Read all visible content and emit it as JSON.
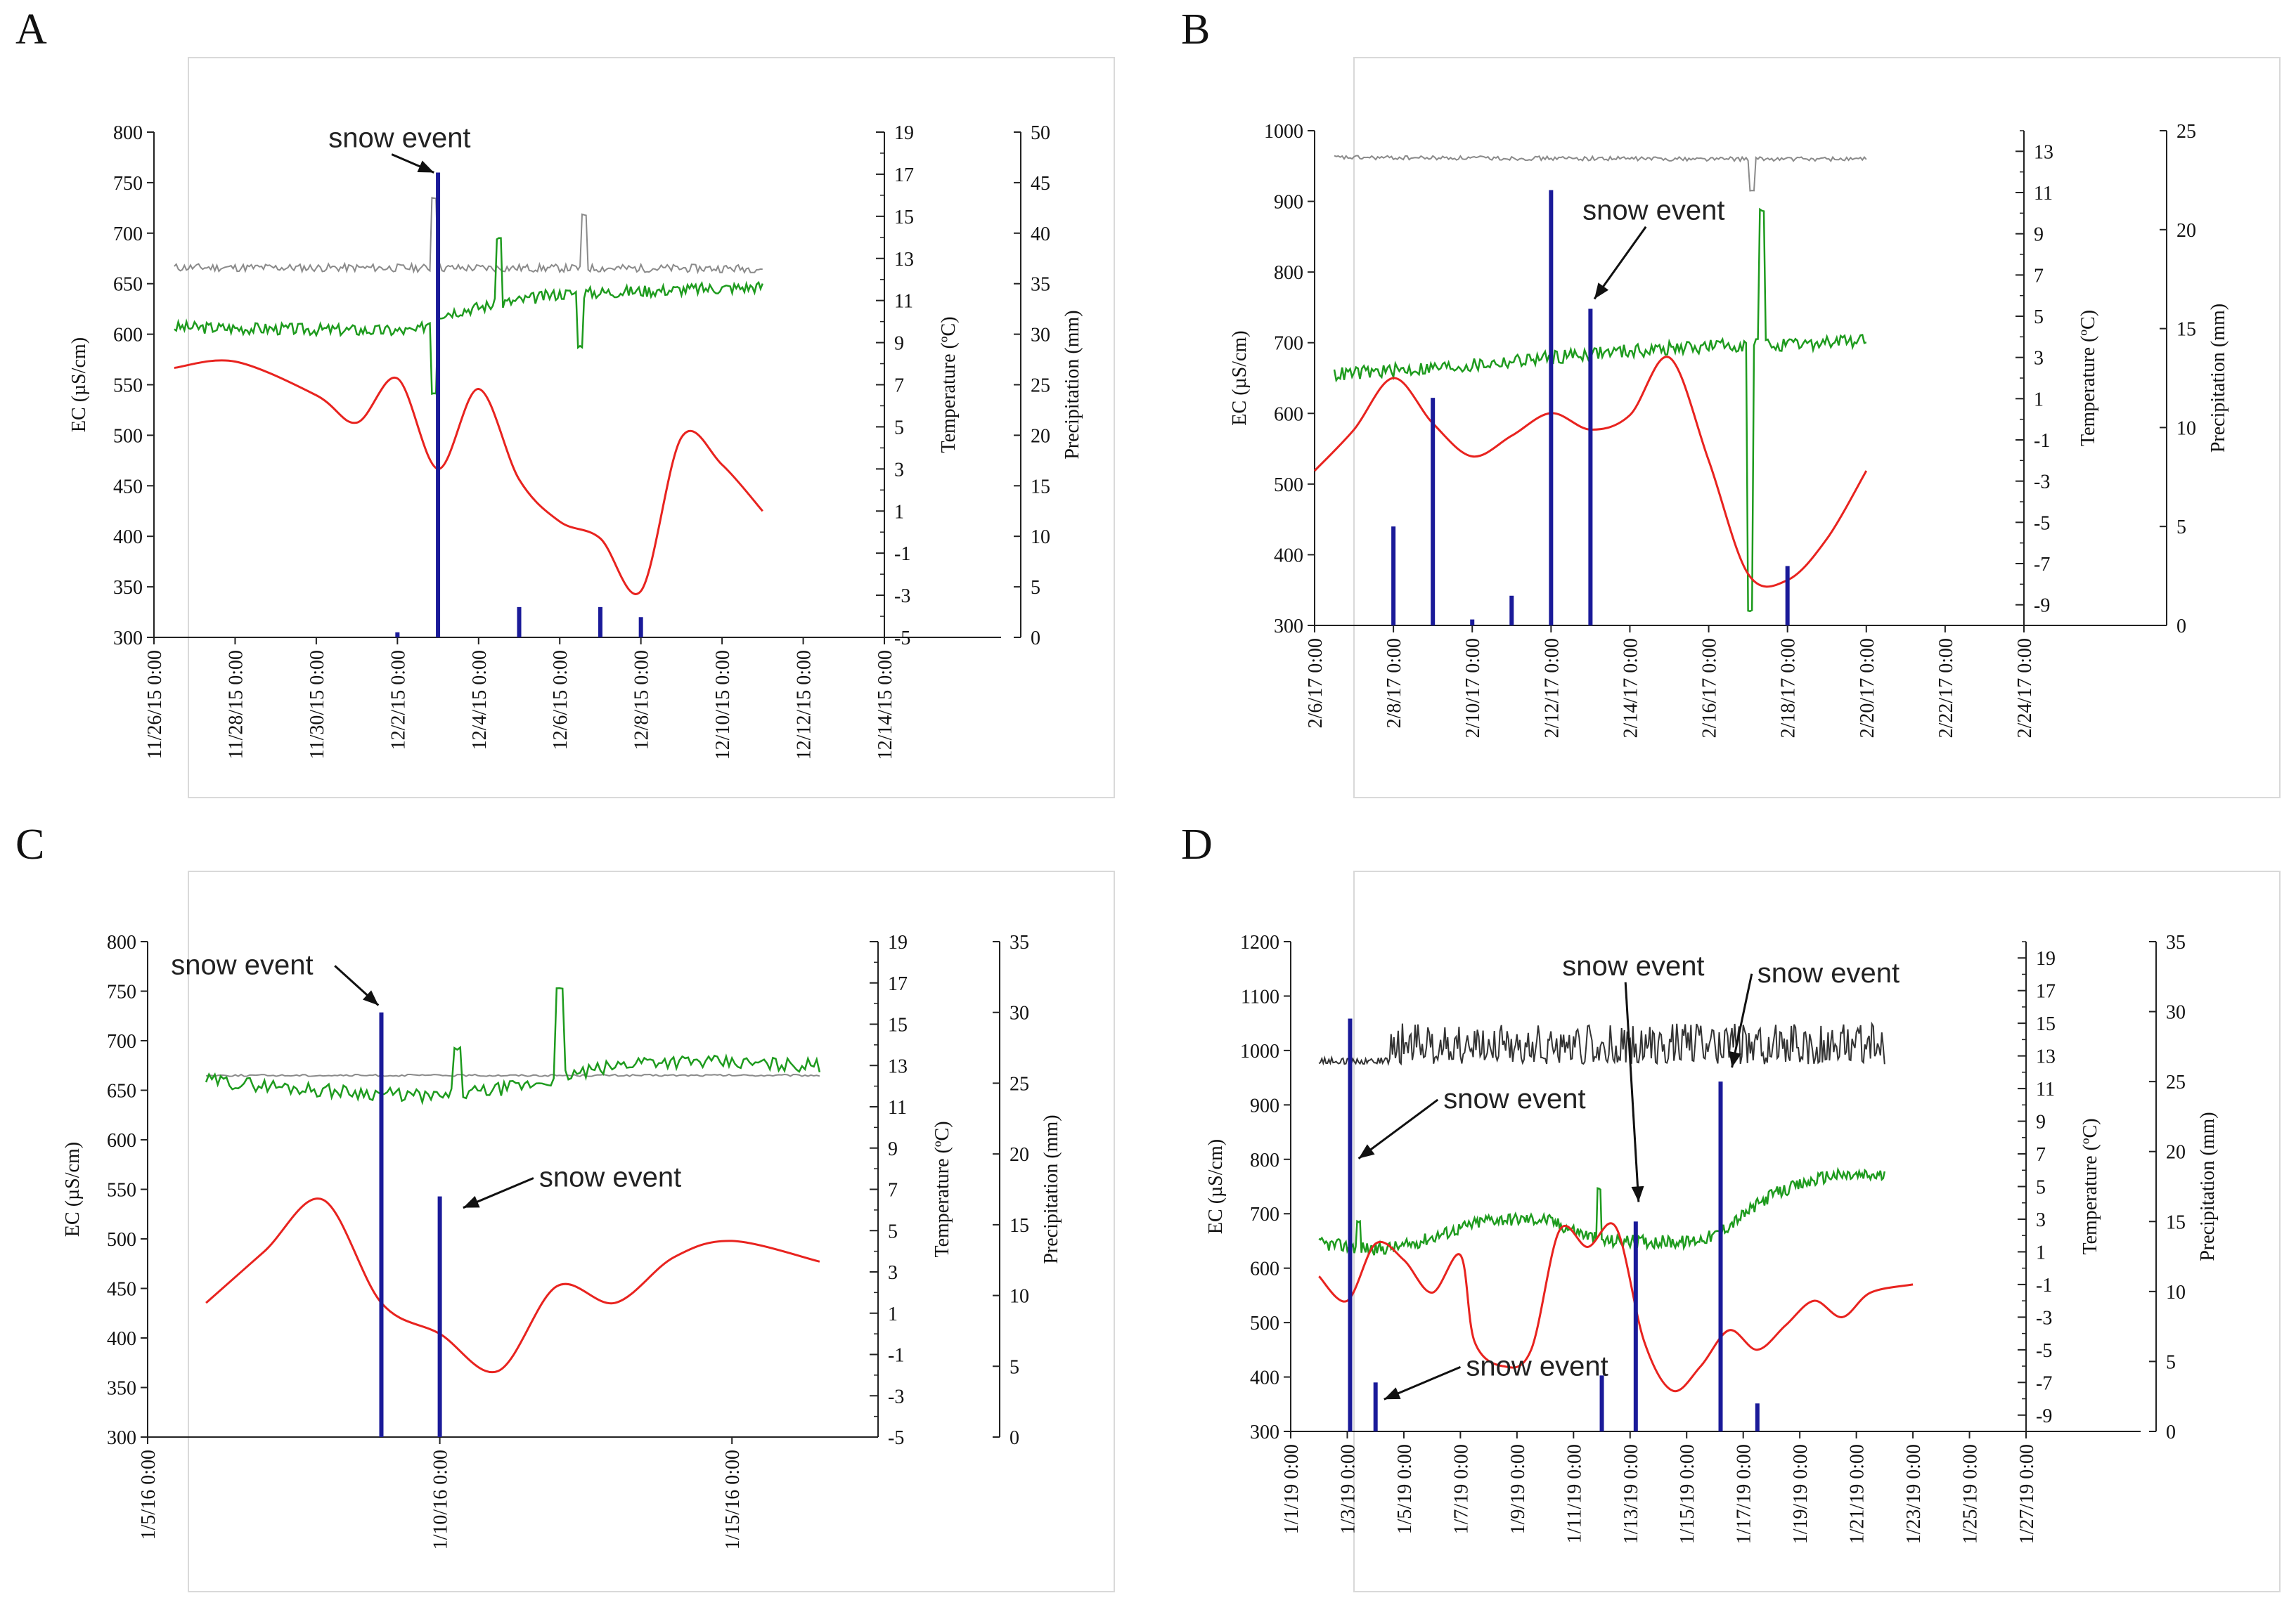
{
  "figure": {
    "colors": {
      "temperature": "#e8231f",
      "ec_raw": "#1e9b1e",
      "ec_gray": "#8a8a8a",
      "precip": "#1a1a99",
      "axis": "#222222",
      "frame": "#d9d9d9"
    }
  },
  "chart_data": [
    {
      "panel": "A",
      "type": "line",
      "ylabel_left": "EC (µS/cm)",
      "ylabel_mid": "Temperature (ºC)",
      "ylabel_right": "Precipitation (mm)",
      "x_ticks": [
        "11/26/15 0:00",
        "11/28/15 0:00",
        "11/30/15 0:00",
        "12/2/15 0:00",
        "12/4/15 0:00",
        "12/6/15 0:00",
        "12/8/15 0:00",
        "12/10/15 0:00",
        "12/12/15 0:00",
        "12/14/15 0:00"
      ],
      "xlim": [
        0,
        18
      ],
      "ec_ticks": [
        "300",
        "350",
        "400",
        "450",
        "500",
        "550",
        "600",
        "650",
        "700",
        "750",
        "800"
      ],
      "ec_lim": [
        300,
        800
      ],
      "temp_ticks": [
        "-5",
        "-3",
        "-1",
        "1",
        "3",
        "5",
        "7",
        "9",
        "11",
        "13",
        "15",
        "17",
        "19"
      ],
      "temp_lim": [
        -5,
        19
      ],
      "precip_ticks": [
        "0",
        "5",
        "10",
        "15",
        "20",
        "25",
        "30",
        "35",
        "40",
        "45",
        "50"
      ],
      "precip_lim": [
        0,
        50
      ],
      "temperature": {
        "x": [
          0.5,
          2,
          4,
          5,
          6,
          7,
          8,
          9,
          10,
          11,
          12,
          13,
          14,
          15
        ],
        "y": [
          7.8,
          8.1,
          6.5,
          5.2,
          7.3,
          3.0,
          6.8,
          2.5,
          0.5,
          -0.3,
          -2.8,
          4.5,
          3.2,
          1.0
        ]
      },
      "ec_green": {
        "base": [
          [
            0.5,
            607
          ],
          [
            6.5,
            603
          ],
          [
            7,
            620
          ],
          [
            10,
            640
          ],
          [
            15,
            647
          ]
        ],
        "spikes": [
          [
            6.9,
            542
          ],
          [
            8.5,
            695
          ],
          [
            10.5,
            588
          ]
        ],
        "noise": 6
      },
      "ec_gray": {
        "base": [
          [
            0.5,
            666
          ],
          [
            15,
            665
          ]
        ],
        "spikes": [
          [
            6.9,
            735
          ],
          [
            10.6,
            718
          ]
        ],
        "noise": 4
      },
      "precipitation": {
        "x": [
          6,
          7,
          9,
          11,
          12
        ],
        "y": [
          0.5,
          46,
          3,
          3,
          2
        ]
      },
      "annotations": [
        {
          "text": "snow event",
          "label_at": [
            4.3,
            48.5
          ],
          "arrow_to": [
            6.9,
            46
          ]
        }
      ]
    },
    {
      "panel": "B",
      "type": "line",
      "ylabel_left": "EC (µS/cm)",
      "ylabel_mid": "Temperature (ºC)",
      "ylabel_right": "Precipitation (mm)",
      "x_ticks": [
        "2/6/17 0:00",
        "2/8/17 0:00",
        "2/10/17 0:00",
        "2/12/17 0:00",
        "2/14/17 0:00",
        "2/16/17 0:00",
        "2/18/17 0:00",
        "2/20/17 0:00",
        "2/22/17 0:00",
        "2/24/17 0:00"
      ],
      "xlim": [
        0,
        18
      ],
      "ec_ticks": [
        "300",
        "400",
        "500",
        "600",
        "700",
        "800",
        "900",
        "1000"
      ],
      "ec_lim": [
        300,
        1000
      ],
      "temp_ticks": [
        "-9",
        "-7",
        "-5",
        "-3",
        "-1",
        "1",
        "3",
        "5",
        "7",
        "9",
        "11",
        "13"
      ],
      "temp_lim": [
        -10,
        14
      ],
      "precip_ticks": [
        "0",
        "5",
        "10",
        "15",
        "20",
        "25"
      ],
      "precip_lim": [
        0,
        25
      ],
      "temperature": {
        "x": [
          0,
          1,
          2,
          3,
          4,
          5,
          6,
          7,
          8,
          9,
          10,
          11,
          12,
          13,
          14
        ],
        "y": [
          -2.5,
          -0.5,
          2.0,
          -0.2,
          -1.8,
          -0.8,
          0.3,
          -0.5,
          0.2,
          3.0,
          -2.0,
          -7.5,
          -7.8,
          -5.8,
          -2.5
        ]
      },
      "ec_green": {
        "base": [
          [
            0.5,
            655
          ],
          [
            4,
            668
          ],
          [
            7,
            685
          ],
          [
            11,
            698
          ],
          [
            12,
            695
          ],
          [
            13,
            700
          ],
          [
            14,
            705
          ]
        ],
        "spikes": [
          [
            11.05,
            320
          ],
          [
            11.35,
            888
          ]
        ],
        "noise": 10
      },
      "ec_gray": {
        "base": [
          [
            0.5,
            962
          ],
          [
            10.5,
            960
          ],
          [
            14,
            960
          ]
        ],
        "spikes": [
          [
            11.1,
            915
          ]
        ],
        "noise": 3
      },
      "precipitation": {
        "x": [
          2,
          3,
          4,
          5,
          6,
          7,
          12
        ],
        "y": [
          5,
          11.5,
          0.3,
          1.5,
          22,
          16,
          3
        ]
      },
      "annotations": [
        {
          "text": "snow event",
          "label_at": [
            6.8,
            20.5
          ],
          "arrow_to": [
            7.1,
            16.5
          ]
        }
      ]
    },
    {
      "panel": "C",
      "type": "line",
      "ylabel_left": "EC (µS/cm)",
      "ylabel_mid": "Temperature (ºC)",
      "ylabel_right": "Precipitation (mm)",
      "x_ticks": [
        "1/5/16 0:00",
        "1/10/16 0:00",
        "1/15/16 0:00"
      ],
      "x_tick_pos": [
        0,
        5,
        10
      ],
      "xlim": [
        0,
        12.5
      ],
      "ec_ticks": [
        "300",
        "350",
        "400",
        "450",
        "500",
        "550",
        "600",
        "650",
        "700",
        "750",
        "800"
      ],
      "ec_lim": [
        300,
        800
      ],
      "temp_ticks": [
        "-5",
        "-3",
        "-1",
        "1",
        "3",
        "5",
        "7",
        "9",
        "11",
        "13",
        "15",
        "17",
        "19"
      ],
      "temp_lim": [
        -5,
        19
      ],
      "precip_ticks": [
        "0",
        "5",
        "10",
        "15",
        "20",
        "25",
        "30",
        "35"
      ],
      "precip_lim": [
        0,
        35
      ],
      "temperature": {
        "x": [
          1,
          2,
          3,
          4,
          5,
          6,
          7,
          8,
          9,
          10,
          11.5
        ],
        "y": [
          1.5,
          4.0,
          6.5,
          1.5,
          0,
          -1.8,
          2.3,
          1.5,
          3.7,
          4.5,
          3.5
        ]
      },
      "ec_green": {
        "base": [
          [
            1,
            660
          ],
          [
            3,
            650
          ],
          [
            5,
            643
          ],
          [
            6.5,
            655
          ],
          [
            7.2,
            665
          ],
          [
            8.5,
            680
          ],
          [
            11.5,
            675
          ]
        ],
        "spikes": [
          [
            5.3,
            692
          ],
          [
            7.05,
            752
          ]
        ],
        "noise": 7
      },
      "ec_gray": {
        "base": [
          [
            1,
            665
          ],
          [
            11.5,
            665
          ]
        ],
        "spikes": [],
        "noise": 1
      },
      "precipitation": {
        "x": [
          4,
          5
        ],
        "y": [
          30,
          17
        ]
      },
      "annotations": [
        {
          "text": "snow event",
          "label_at": [
            0.4,
            32.7
          ],
          "arrow_to": [
            3.95,
            30.5
          ]
        },
        {
          "text": "snow event",
          "label_at": [
            6.7,
            17.7
          ],
          "arrow_to": [
            5.4,
            16.2
          ]
        }
      ]
    },
    {
      "panel": "D",
      "type": "line",
      "ylabel_left": "EC (µS/cm)",
      "ylabel_mid": "Temperature (ºC)",
      "ylabel_right": "Precipitation (mm)",
      "x_ticks": [
        "1/1/19 0:00",
        "1/3/19 0:00",
        "1/5/19 0:00",
        "1/7/19 0:00",
        "1/9/19 0:00",
        "1/11/19 0:00",
        "1/13/19 0:00",
        "1/15/19 0:00",
        "1/17/19 0:00",
        "1/19/19 0:00",
        "1/21/19 0:00",
        "1/23/19 0:00",
        "1/25/19 0:00",
        "1/27/19 0:00"
      ],
      "xlim": [
        0,
        26
      ],
      "ec_ticks": [
        "300",
        "400",
        "500",
        "600",
        "700",
        "800",
        "900",
        "1000",
        "1100",
        "1200"
      ],
      "ec_lim": [
        300,
        1200
      ],
      "temp_ticks": [
        "-9",
        "-7",
        "-5",
        "-3",
        "-1",
        "1",
        "3",
        "5",
        "7",
        "9",
        "11",
        "13",
        "15",
        "17",
        "19"
      ],
      "temp_lim": [
        -10,
        20
      ],
      "precip_ticks": [
        "0",
        "5",
        "10",
        "15",
        "20",
        "25",
        "30",
        "35"
      ],
      "precip_lim": [
        0,
        35
      ],
      "temperature": {
        "x": [
          1,
          2,
          3,
          4,
          5,
          6,
          6.5,
          7.5,
          8.5,
          9.5,
          10.5,
          11.5,
          12.5,
          13.5,
          14.5,
          15.5,
          16.5,
          17.5,
          18.5,
          19.5,
          20.5,
          22
        ],
        "y": [
          -0.5,
          -2.0,
          1.5,
          0.5,
          -1.5,
          0.8,
          -4.5,
          -6.0,
          -5.0,
          2.3,
          1.3,
          2.5,
          -4.5,
          -7.5,
          -6.0,
          -3.8,
          -5.0,
          -3.5,
          -2.0,
          -3.0,
          -1.5,
          -1.0
        ]
      },
      "ec_green": {
        "base": [
          [
            1,
            645
          ],
          [
            3,
            635
          ],
          [
            4,
            640
          ],
          [
            7,
            690
          ],
          [
            9,
            690
          ],
          [
            11,
            650
          ],
          [
            14,
            648
          ],
          [
            15,
            660
          ],
          [
            17,
            735
          ],
          [
            19,
            770
          ],
          [
            21,
            770
          ]
        ],
        "spikes": [
          [
            2.4,
            685
          ],
          [
            10.9,
            745
          ]
        ],
        "noise": 12
      },
      "ec_gray": {
        "base": [
          [
            1,
            975
          ],
          [
            21,
            975
          ]
        ],
        "spikes": [],
        "noise": 0,
        "osc": [
          [
            1,
            3.5,
            12
          ],
          [
            3.5,
            21,
            75
          ]
        ]
      },
      "precipitation": {
        "x": [
          2.1,
          3.0,
          11.0,
          12.2,
          15.2,
          16.5
        ],
        "y": [
          29.5,
          3.5,
          4,
          15,
          25,
          2
        ]
      },
      "annotations": [
        {
          "text": "snow event",
          "label_at": [
            5.4,
            23.1
          ],
          "arrow_to": [
            2.4,
            19.5
          ]
        },
        {
          "text": "snow event",
          "label_at": [
            9.6,
            32.6
          ],
          "arrow_to": [
            12.3,
            16.4
          ]
        },
        {
          "text": "snow event",
          "label_at": [
            16.5,
            32.1
          ],
          "arrow_to": [
            15.6,
            26.0
          ]
        },
        {
          "text": "snow event",
          "label_at": [
            6.2,
            4.0
          ],
          "arrow_to": [
            3.3,
            2.3
          ]
        }
      ]
    }
  ]
}
